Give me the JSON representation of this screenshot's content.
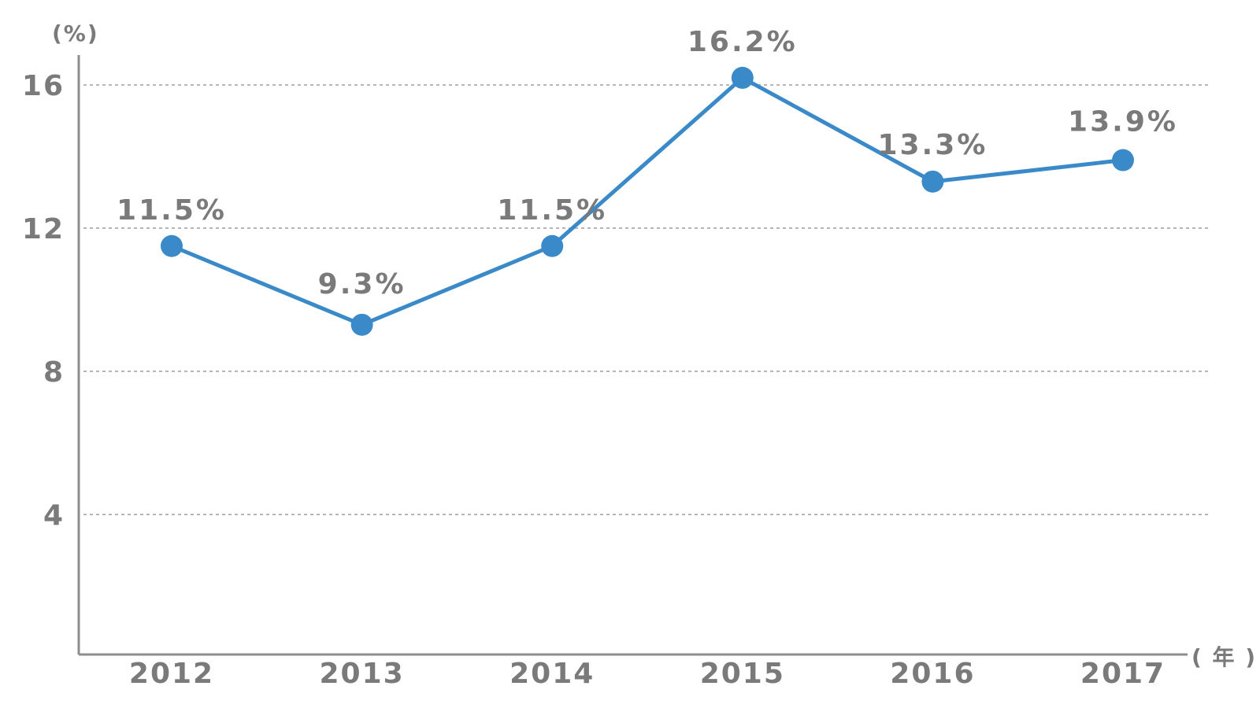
{
  "chart_data": {
    "type": "line",
    "ylabel": "(%)",
    "xlabel": "( 年 )",
    "categories": [
      "2012",
      "2013",
      "2014",
      "2015",
      "2016",
      "2017"
    ],
    "series": [
      {
        "values": [
          11.5,
          9.3,
          11.5,
          16.2,
          13.3,
          13.9
        ],
        "labels": [
          "11.5%",
          "9.3%",
          "11.5%",
          "16.2%",
          "13.3%",
          "13.9%"
        ]
      }
    ],
    "yticks": [
      4,
      8,
      12,
      16
    ],
    "ylim": [
      0,
      16.85
    ],
    "grid": true,
    "colors": {
      "line": "#3a8ac9",
      "text": "#7a7a7a",
      "axis": "#8c8c8c",
      "grid": "#b5b5b5"
    }
  }
}
